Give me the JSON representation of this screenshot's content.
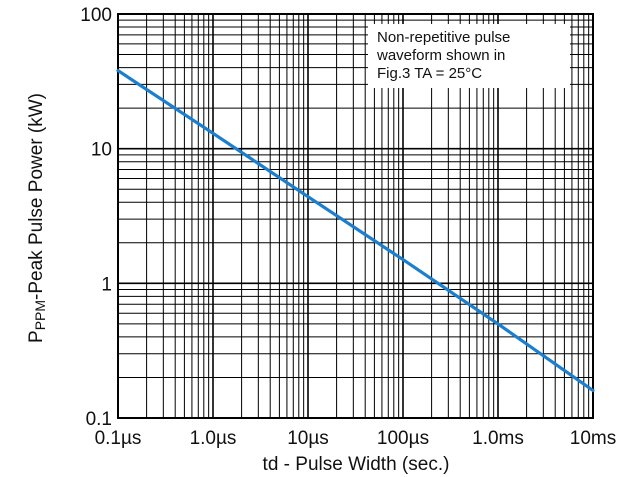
{
  "chart_data": {
    "type": "line",
    "title": "",
    "xlabel": "td - Pulse Width (sec.)",
    "ylabel": {
      "prefix": "P",
      "subscript": "PPM",
      "suffix": "-Peak Pulse Power (kW)"
    },
    "x_scale": "log",
    "y_scale": "log",
    "xlim": [
      1e-07,
      0.01
    ],
    "ylim": [
      0.1,
      100
    ],
    "grid": true,
    "x_ticks": [
      {
        "value": 1e-07,
        "label": "0.1µs"
      },
      {
        "value": 1e-06,
        "label": "1.0µs"
      },
      {
        "value": 1e-05,
        "label": "10µs"
      },
      {
        "value": 0.0001,
        "label": "100µs"
      },
      {
        "value": 0.001,
        "label": "1.0ms"
      },
      {
        "value": 0.01,
        "label": "10ms"
      }
    ],
    "y_ticks": [
      {
        "value": 0.1,
        "label": "0.1"
      },
      {
        "value": 1,
        "label": "1"
      },
      {
        "value": 10,
        "label": "10"
      },
      {
        "value": 100,
        "label": "100"
      }
    ],
    "series": [
      {
        "color": "#1a7fd0",
        "points": [
          {
            "x": 1e-07,
            "y": 38
          },
          {
            "x": 1e-06,
            "y": 13
          },
          {
            "x": 1e-05,
            "y": 4.4
          },
          {
            "x": 0.0001,
            "y": 1.5
          },
          {
            "x": 0.001,
            "y": 0.5
          },
          {
            "x": 0.01,
            "y": 0.16
          }
        ]
      }
    ],
    "annotations": [
      {
        "lines": [
          "Non-repetitive pulse",
          "waveform shown in",
          "Fig.3 TA = 25°C"
        ],
        "placement": "top-right"
      }
    ]
  }
}
